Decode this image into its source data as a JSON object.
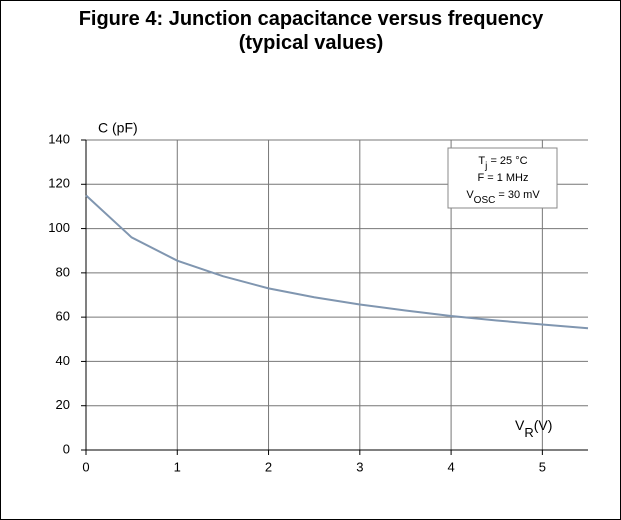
{
  "chart_data": {
    "type": "line",
    "title": "Figure 4: Junction capacitance versus frequency (typical values)",
    "y_label": "C (pF)",
    "x_label": {
      "text": "V",
      "sub": "R",
      "after": "(V)"
    },
    "annotations": [
      {
        "text": "T",
        "sub": "j",
        "after": " = 25 °C"
      },
      {
        "text": "F = 1 MHz"
      },
      {
        "text": "V",
        "sub": "OSC",
        "after": " = 30 mV"
      }
    ],
    "x": [
      0,
      0.5,
      1,
      1.5,
      2,
      2.5,
      3,
      3.5,
      4,
      4.5,
      5,
      5.5
    ],
    "series": [
      {
        "name": "C",
        "color": "#8096b0",
        "values": [
          115,
          96,
          85.5,
          78.5,
          73,
          69,
          65.7,
          63,
          60.5,
          58.5,
          56.7,
          55
        ]
      }
    ],
    "xlim": [
      0,
      5.5
    ],
    "xticks": [
      0,
      1,
      2,
      3,
      4,
      5
    ],
    "ylim": [
      0,
      140
    ],
    "yticks": [
      0,
      20,
      40,
      60,
      80,
      100,
      120,
      140
    ],
    "grid": true
  }
}
